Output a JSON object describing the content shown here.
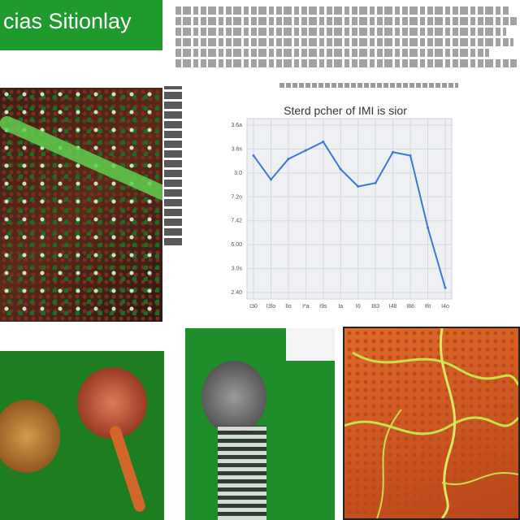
{
  "banner": {
    "title": "cias Sitionlay",
    "color": "#1f9a2c"
  },
  "chart_data": {
    "type": "line",
    "title": "Sterd pcher of IMI is sior",
    "xlabel": "",
    "ylabel": "",
    "x_tick_labels": [
      "I30",
      "I3lo",
      "Ilo",
      "I*a",
      "I9s",
      "Ia",
      "I0",
      "I83",
      "I48",
      "I88",
      "Ifit",
      "I4o"
    ],
    "y_tick_labels": [
      "3.6a",
      "3.6s",
      "3.0",
      "7.2o",
      "7.42",
      "6.00",
      "3.0s",
      "2.40"
    ],
    "series": [
      {
        "color": "#3a78d8",
        "values": [
          3.42,
          3.14,
          3.38,
          3.48,
          3.58,
          3.26,
          3.06,
          3.1,
          3.46,
          3.42,
          2.58,
          1.88
        ]
      }
    ],
    "ylim": [
      1.75,
      3.85
    ],
    "grid": true
  },
  "icons": [
    "cell-micrograph",
    "mushroom-illustration",
    "skeleton-illustration",
    "vein-texture"
  ]
}
